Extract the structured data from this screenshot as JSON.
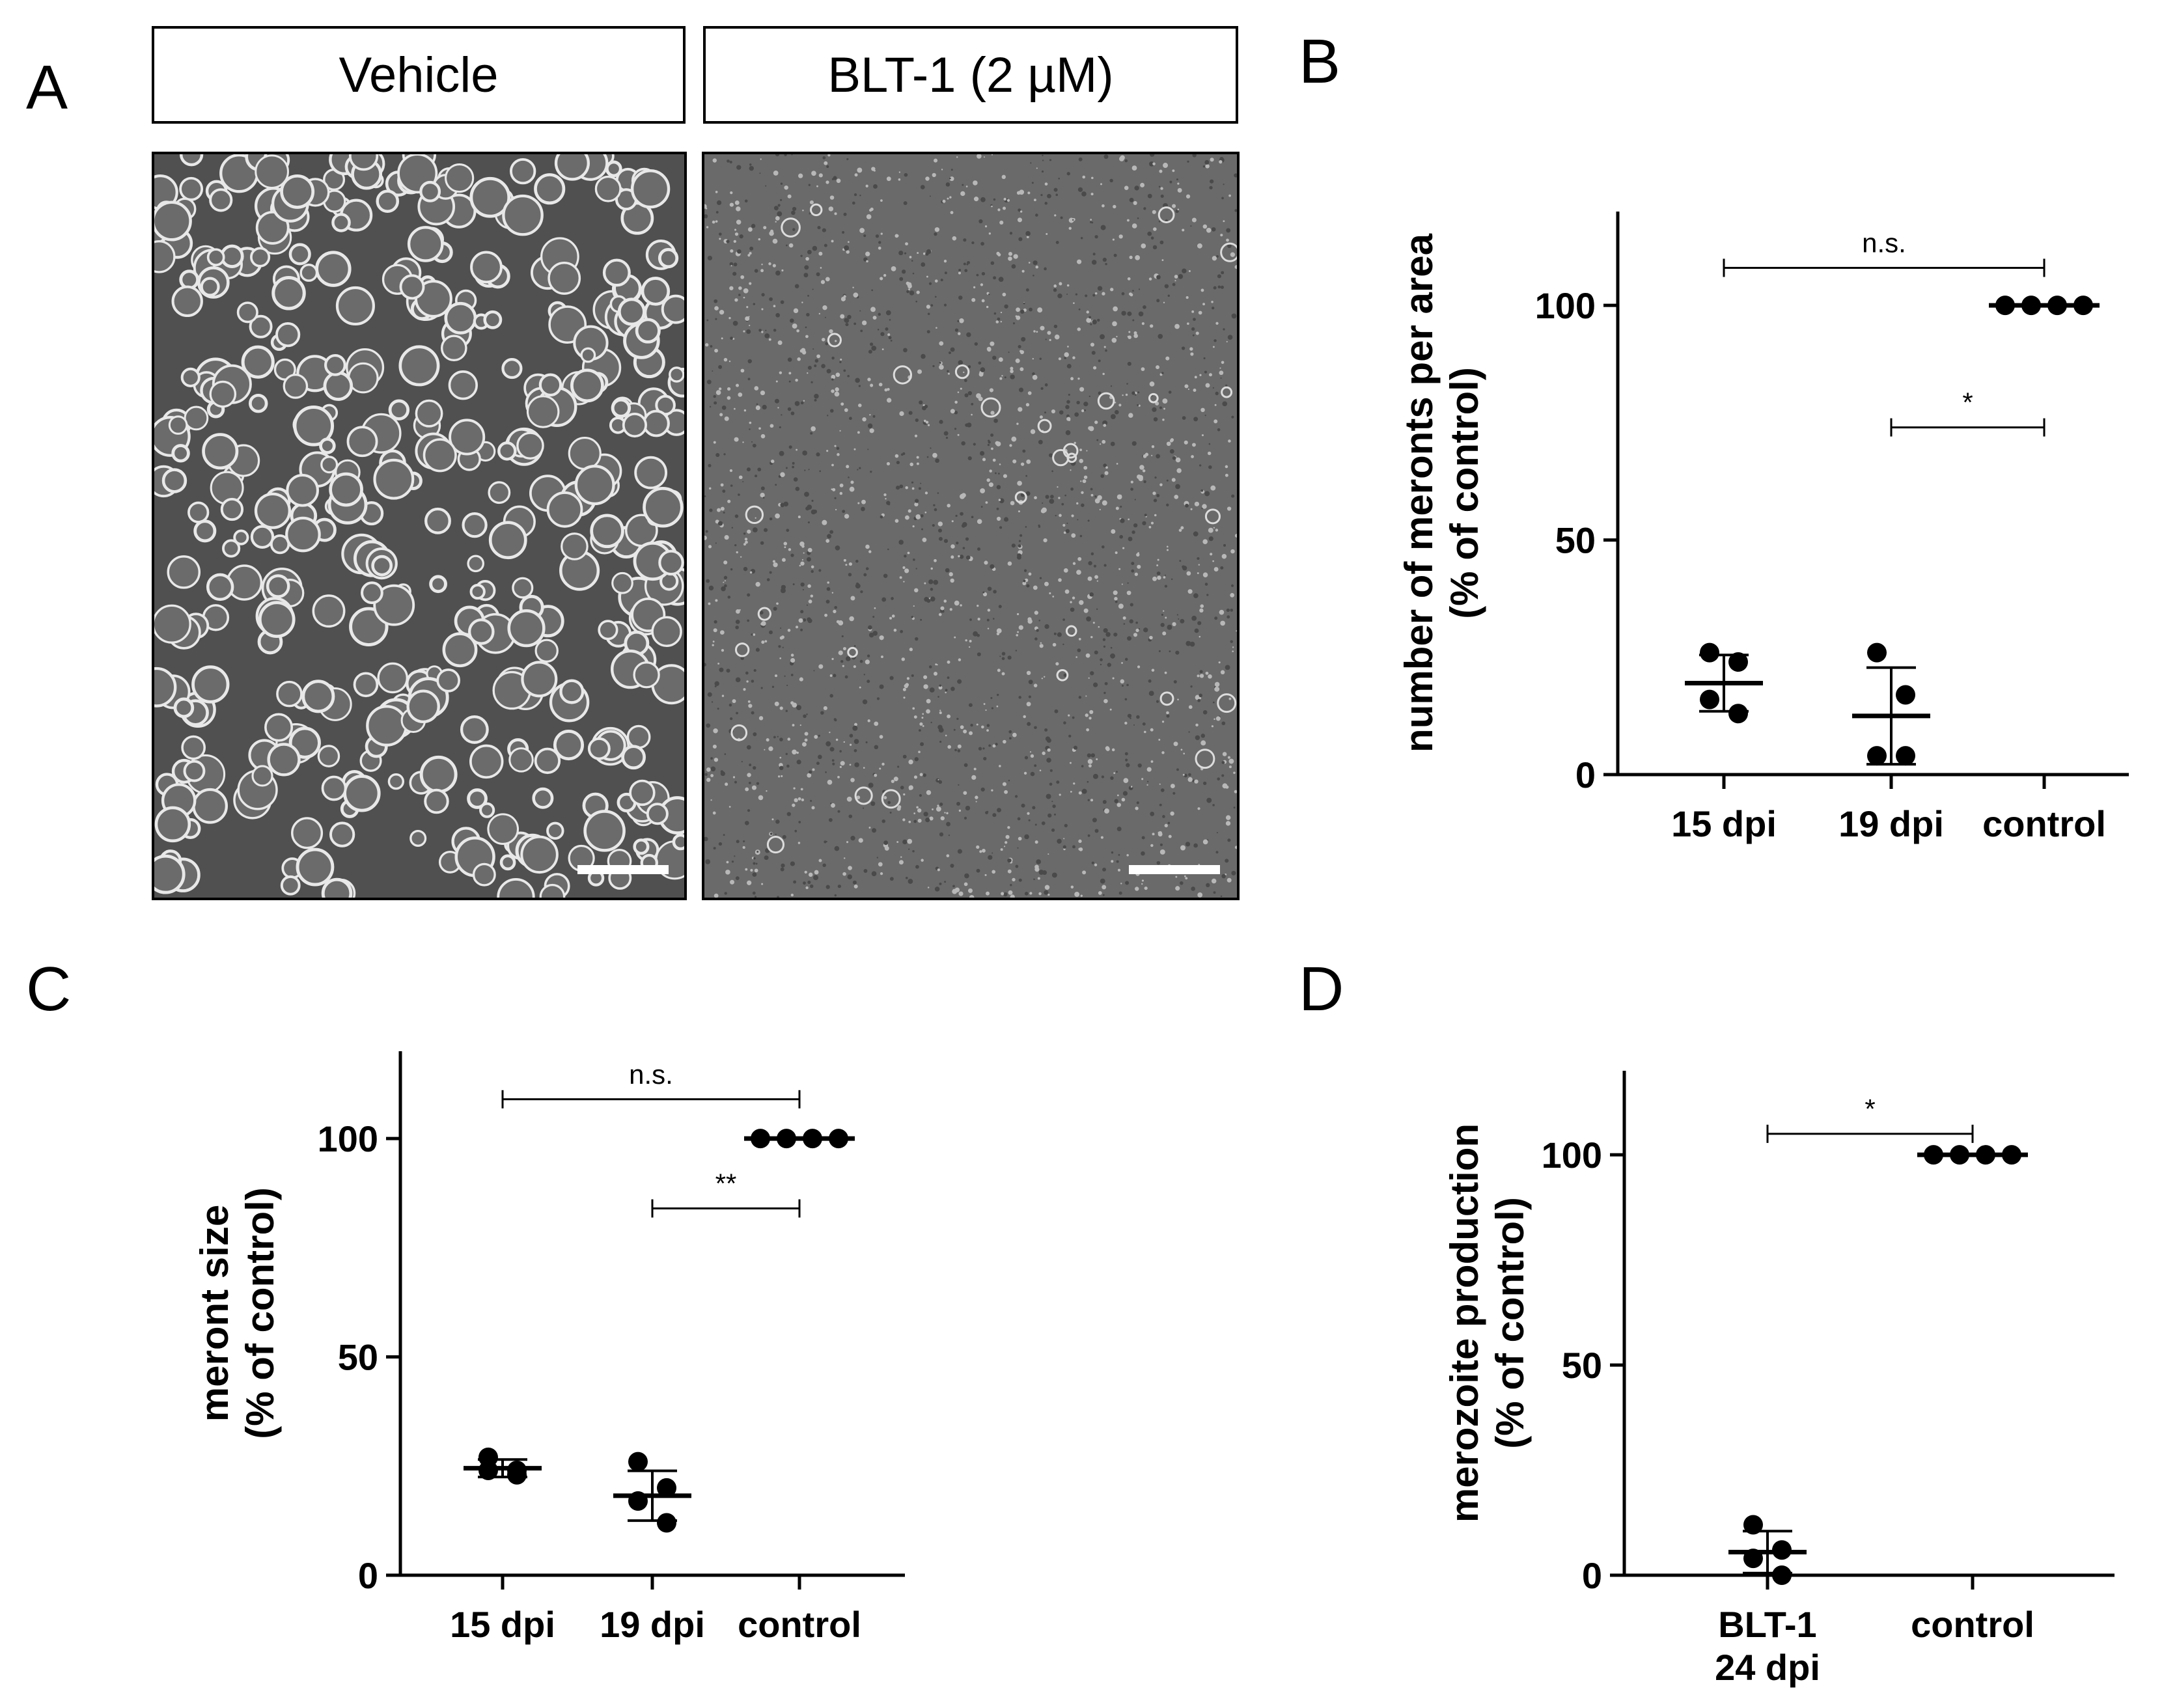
{
  "panel_a": {
    "letter": "A",
    "conditions": [
      "Vehicle",
      "BLT-1 (2 µM)"
    ]
  },
  "chart_data": [
    {
      "panel": "B",
      "type": "scatter",
      "ylabel_lines": [
        "number of meronts per area",
        "(% of control)"
      ],
      "categories": [
        "15 dpi",
        "19 dpi",
        "control"
      ],
      "ylim": [
        0,
        120
      ],
      "yticks": [
        0,
        50,
        100
      ],
      "points": [
        [
          26,
          24,
          16,
          13
        ],
        [
          26,
          17,
          4,
          4
        ],
        [
          100,
          100,
          100,
          100
        ]
      ],
      "mean": [
        19.5,
        12.5,
        100
      ],
      "sd": [
        6,
        10.3,
        0
      ],
      "significance": [
        {
          "from": 0,
          "to": 2,
          "y": 108,
          "label": "n.s."
        },
        {
          "from": 1,
          "to": 2,
          "y": 74,
          "label": "*"
        }
      ]
    },
    {
      "panel": "C",
      "type": "scatter",
      "ylabel_lines": [
        "meront size",
        "(% of control)"
      ],
      "categories": [
        "15 dpi",
        "19 dpi",
        "control"
      ],
      "ylim": [
        0,
        120
      ],
      "yticks": [
        0,
        50,
        100
      ],
      "points": [
        [
          27,
          24,
          24,
          23
        ],
        [
          26,
          20,
          17,
          12
        ],
        [
          100,
          100,
          100,
          100
        ]
      ],
      "mean": [
        24.5,
        18.2,
        100
      ],
      "sd": [
        2,
        5.7,
        0
      ],
      "significance": [
        {
          "from": 0,
          "to": 2,
          "y": 109,
          "label": "n.s."
        },
        {
          "from": 1,
          "to": 2,
          "y": 84,
          "label": "**"
        }
      ]
    },
    {
      "panel": "D",
      "type": "scatter",
      "ylabel_lines": [
        "merozoite production",
        "(% of control)"
      ],
      "categories": [
        [
          "BLT-1",
          "24 dpi"
        ],
        [
          "control"
        ]
      ],
      "ylim": [
        0,
        120
      ],
      "yticks": [
        0,
        50,
        100
      ],
      "points": [
        [
          12,
          6,
          4,
          0
        ],
        [
          100,
          100,
          100,
          100
        ]
      ],
      "mean": [
        5.5,
        100
      ],
      "sd": [
        5,
        0
      ],
      "significance": [
        {
          "from": 0,
          "to": 1,
          "y": 105,
          "label": "*"
        }
      ]
    }
  ]
}
